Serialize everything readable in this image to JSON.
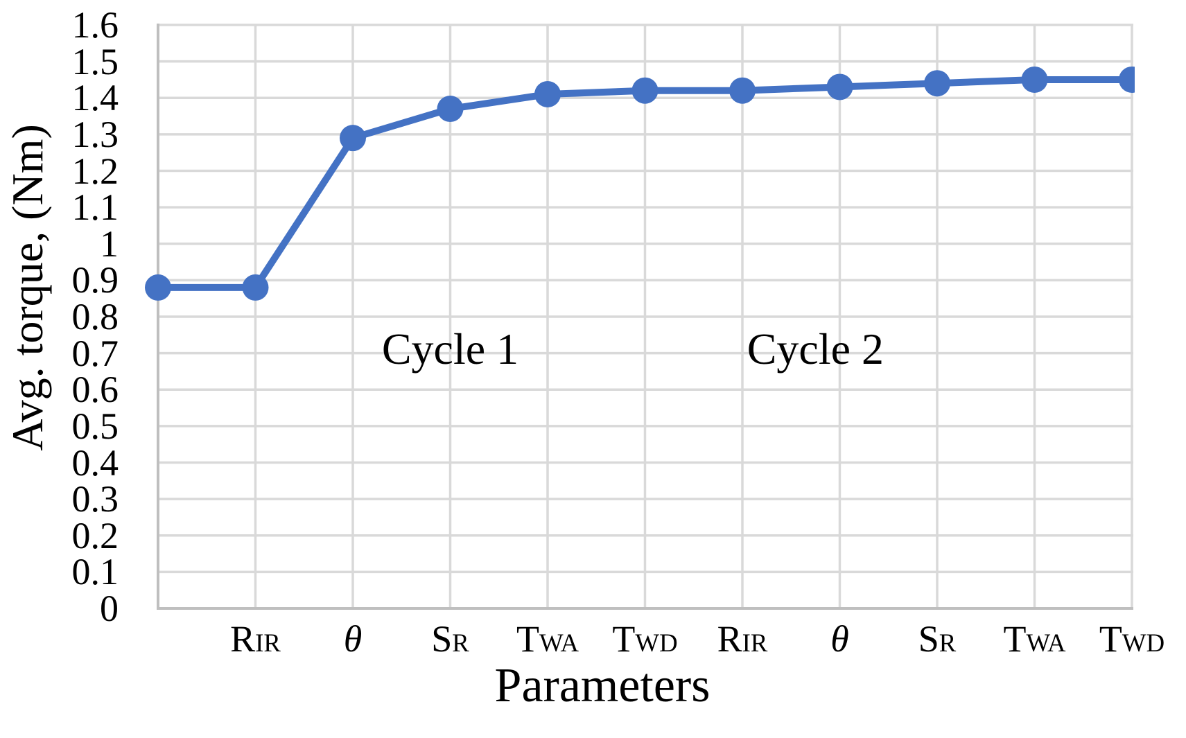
{
  "chart_data": {
    "type": "line",
    "title": "",
    "xlabel": "Parameters",
    "ylabel": "Avg. torque, (Nm)",
    "ylim": [
      0,
      1.6
    ],
    "ytick_step": 0.1,
    "ytick_labels": [
      "0",
      "0.1",
      "0.2",
      "0.3",
      "0.4",
      "0.5",
      "0.6",
      "0.7",
      "0.8",
      "0.9",
      "1",
      "1.1",
      "1.2",
      "1.3",
      "1.4",
      "1.5",
      "1.6"
    ],
    "categories": [
      {
        "base": "",
        "small": "",
        "italic": false
      },
      {
        "base": "R",
        "small": "IR",
        "italic": false
      },
      {
        "base": "θ",
        "small": "",
        "italic": true
      },
      {
        "base": "S",
        "small": "R",
        "italic": false
      },
      {
        "base": "T",
        "small": "WA",
        "italic": false
      },
      {
        "base": "T",
        "small": "WD",
        "italic": false
      },
      {
        "base": "R",
        "small": "IR",
        "italic": false
      },
      {
        "base": "θ",
        "small": "",
        "italic": true
      },
      {
        "base": "S",
        "small": "R",
        "italic": false
      },
      {
        "base": "T",
        "small": "WA",
        "italic": false
      },
      {
        "base": "T",
        "small": "WD",
        "italic": false
      }
    ],
    "series": [
      {
        "name": "Avg. torque",
        "values": [
          0.88,
          0.88,
          1.29,
          1.37,
          1.41,
          1.42,
          1.42,
          1.43,
          1.44,
          1.45,
          1.45
        ]
      }
    ],
    "annotations": [
      {
        "text": "Cycle 1",
        "x_index": 3.0,
        "y_value": 0.71
      },
      {
        "text": "Cycle 2",
        "x_index": 6.75,
        "y_value": 0.71
      }
    ],
    "colors": {
      "line": "#4472C4",
      "marker": "#4472C4",
      "gridline": "#D9D9D9",
      "axis": "#BFBFBF",
      "text": "#000000"
    },
    "grid": true,
    "legend": "none"
  }
}
